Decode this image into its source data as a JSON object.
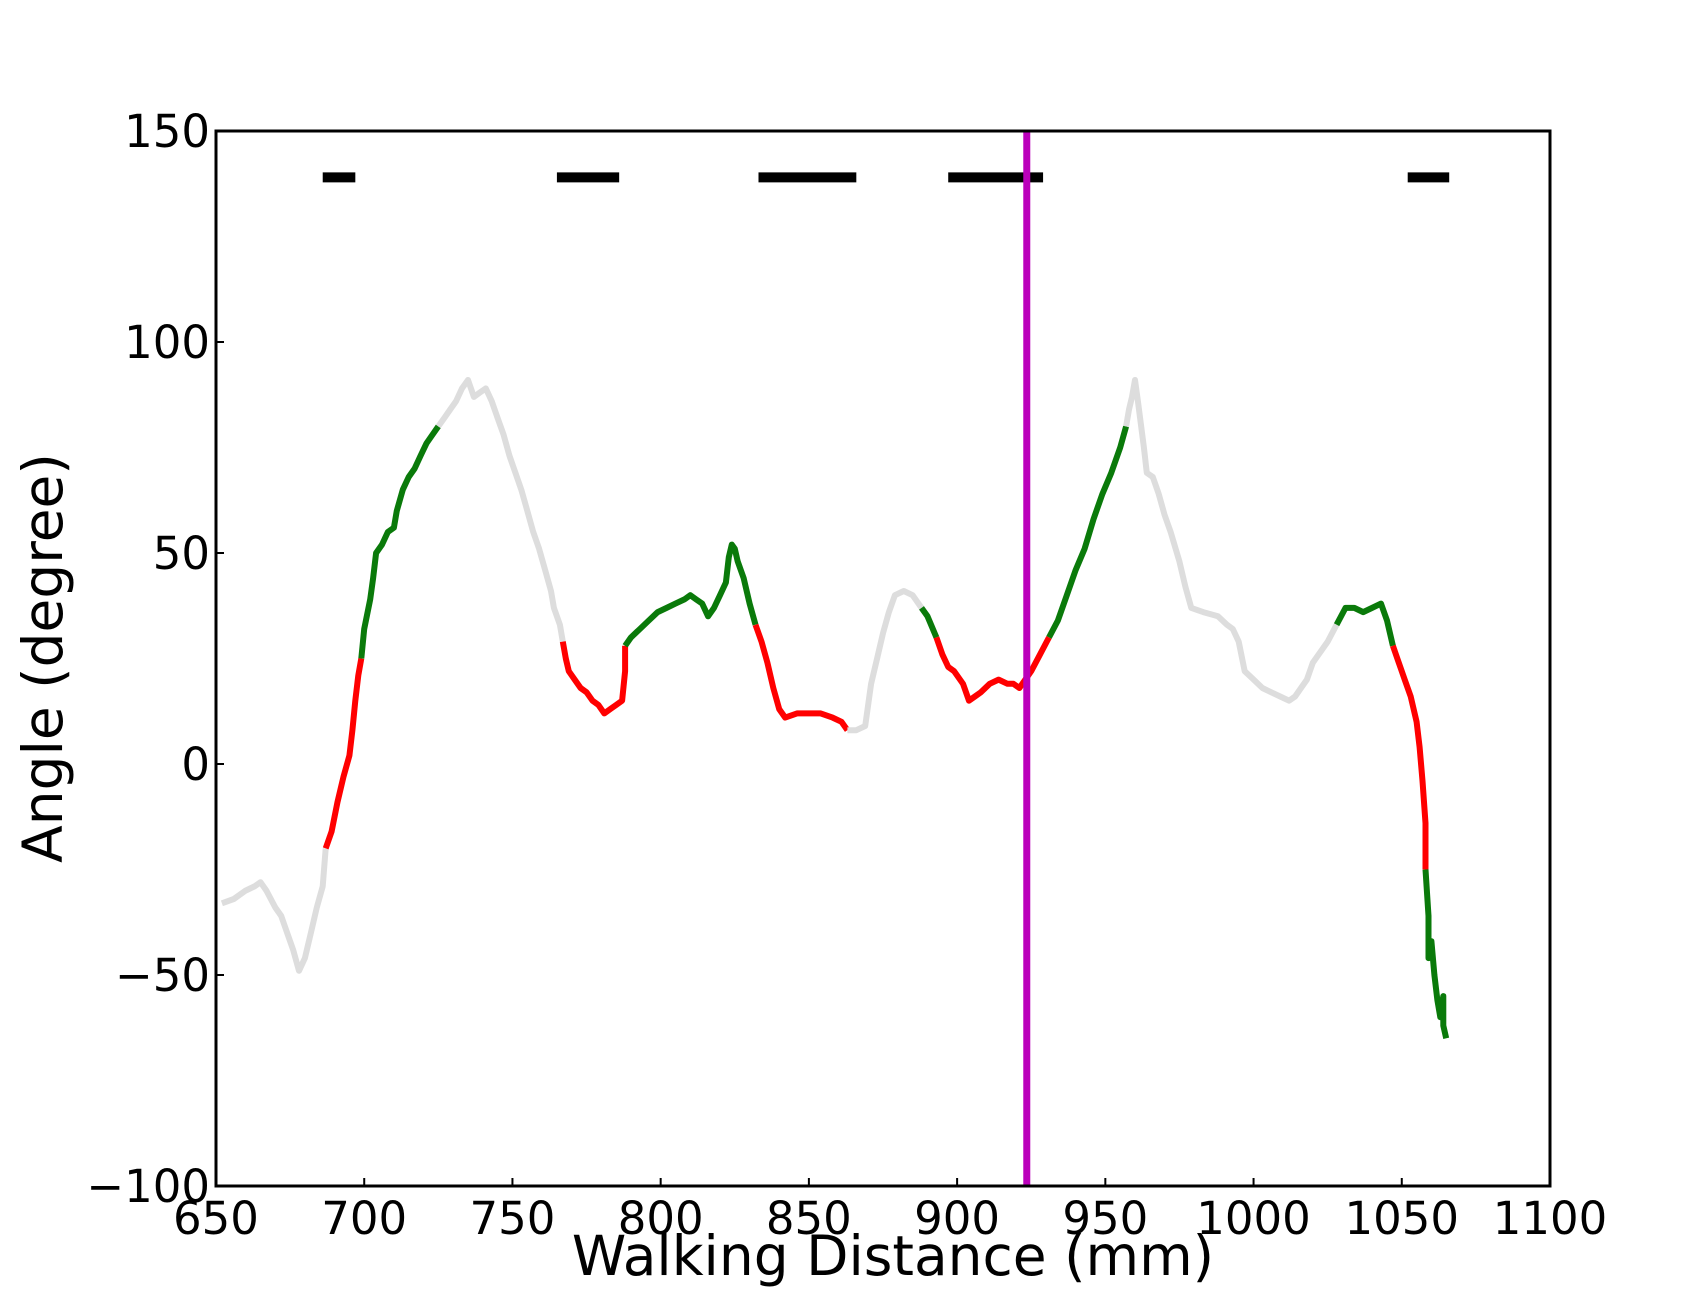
{
  "chart_data": {
    "type": "line",
    "title": "",
    "xlabel": "Walking Distance (mm)",
    "ylabel": "Angle (degree)",
    "xlim": [
      650,
      1100
    ],
    "ylim": [
      -100,
      150
    ],
    "xticks": [
      650,
      700,
      750,
      800,
      850,
      900,
      950,
      1000,
      1050,
      1100
    ],
    "yticks": [
      -100,
      -50,
      0,
      50,
      100,
      150
    ],
    "grid": false,
    "legend": "none",
    "colors": {
      "inactive": "#dddddd",
      "rising": "#0a7a0a",
      "falling": "#ff0000",
      "marker": "#bb00bb",
      "bars": "#000000"
    },
    "vertical_marker": {
      "x": 923.5
    },
    "top_bars": {
      "y": 139,
      "ranges": [
        [
          686,
          697
        ],
        [
          765,
          786
        ],
        [
          833,
          866
        ],
        [
          897,
          929
        ],
        [
          1052,
          1066
        ]
      ]
    },
    "segments": [
      {
        "type": "inactive",
        "points": [
          [
            652,
            -33
          ],
          [
            656,
            -32
          ],
          [
            660,
            -30
          ],
          [
            663,
            -29
          ],
          [
            665,
            -28
          ],
          [
            667,
            -30
          ],
          [
            670,
            -34
          ],
          [
            672,
            -36
          ],
          [
            674,
            -40
          ],
          [
            676,
            -44
          ],
          [
            678,
            -49
          ],
          [
            680,
            -46
          ],
          [
            682,
            -40
          ],
          [
            684,
            -34
          ],
          [
            686,
            -29
          ],
          [
            687,
            -20
          ]
        ]
      },
      {
        "type": "falling",
        "points": [
          [
            687,
            -20
          ],
          [
            689,
            -16
          ],
          [
            691,
            -9
          ],
          [
            693,
            -3
          ],
          [
            695,
            2
          ],
          [
            696,
            8
          ],
          [
            697,
            15
          ],
          [
            698,
            21
          ],
          [
            699,
            25
          ]
        ]
      },
      {
        "type": "rising",
        "points": [
          [
            699,
            25
          ],
          [
            700,
            32
          ],
          [
            702,
            39
          ],
          [
            703,
            44
          ],
          [
            704,
            50
          ],
          [
            706,
            52
          ],
          [
            708,
            55
          ],
          [
            710,
            56
          ],
          [
            711,
            60
          ],
          [
            713,
            65
          ],
          [
            715,
            68
          ],
          [
            717,
            70
          ],
          [
            719,
            73
          ],
          [
            721,
            76
          ],
          [
            723,
            78
          ],
          [
            725,
            80
          ]
        ]
      },
      {
        "type": "inactive",
        "points": [
          [
            725,
            80
          ],
          [
            727,
            82
          ],
          [
            729,
            84
          ],
          [
            731,
            86
          ],
          [
            733,
            89
          ],
          [
            735,
            91
          ],
          [
            737,
            87
          ],
          [
            739,
            88
          ],
          [
            741,
            89
          ],
          [
            743,
            86
          ],
          [
            745,
            82
          ],
          [
            747,
            78
          ],
          [
            749,
            73
          ],
          [
            751,
            69
          ],
          [
            753,
            65
          ],
          [
            755,
            60
          ],
          [
            757,
            55
          ],
          [
            759,
            51
          ],
          [
            761,
            46
          ],
          [
            763,
            41
          ],
          [
            764,
            37
          ],
          [
            766,
            33
          ],
          [
            767,
            29
          ]
        ]
      },
      {
        "type": "falling",
        "points": [
          [
            767,
            29
          ],
          [
            768,
            25
          ],
          [
            769,
            22
          ],
          [
            771,
            20
          ],
          [
            773,
            18
          ],
          [
            775,
            17
          ],
          [
            777,
            15
          ],
          [
            779,
            14
          ],
          [
            781,
            12
          ],
          [
            783,
            13
          ],
          [
            785,
            14
          ],
          [
            787,
            15
          ],
          [
            788,
            22
          ],
          [
            788,
            28
          ]
        ]
      },
      {
        "type": "rising",
        "points": [
          [
            788,
            28
          ],
          [
            790,
            30
          ],
          [
            793,
            32
          ],
          [
            796,
            34
          ],
          [
            799,
            36
          ],
          [
            802,
            37
          ],
          [
            805,
            38
          ],
          [
            808,
            39
          ],
          [
            810,
            40
          ],
          [
            812,
            39
          ],
          [
            814,
            38
          ],
          [
            816,
            35
          ],
          [
            818,
            37
          ],
          [
            820,
            40
          ],
          [
            822,
            43
          ],
          [
            823,
            49
          ],
          [
            824,
            52
          ],
          [
            825,
            51
          ],
          [
            826,
            48
          ],
          [
            828,
            44
          ],
          [
            830,
            38
          ],
          [
            832,
            33
          ]
        ]
      },
      {
        "type": "falling",
        "points": [
          [
            832,
            33
          ],
          [
            834,
            29
          ],
          [
            836,
            24
          ],
          [
            838,
            18
          ],
          [
            840,
            13
          ],
          [
            842,
            11
          ],
          [
            846,
            12
          ],
          [
            850,
            12
          ],
          [
            854,
            12
          ],
          [
            858,
            11
          ],
          [
            861,
            10
          ],
          [
            863,
            8
          ]
        ]
      },
      {
        "type": "inactive",
        "points": [
          [
            863,
            8
          ],
          [
            866,
            8
          ],
          [
            869,
            9
          ],
          [
            871,
            19
          ],
          [
            873,
            25
          ],
          [
            875,
            31
          ],
          [
            877,
            36
          ],
          [
            879,
            40
          ],
          [
            882,
            41
          ],
          [
            885,
            40
          ],
          [
            888,
            37
          ]
        ]
      },
      {
        "type": "rising",
        "points": [
          [
            888,
            37
          ],
          [
            890,
            35
          ],
          [
            893,
            30
          ]
        ]
      },
      {
        "type": "falling",
        "points": [
          [
            893,
            30
          ],
          [
            895,
            26
          ],
          [
            897,
            23
          ],
          [
            899,
            22
          ],
          [
            902,
            19
          ],
          [
            904,
            15
          ],
          [
            906,
            16
          ],
          [
            908,
            17
          ],
          [
            911,
            19
          ],
          [
            914,
            20
          ],
          [
            917,
            19
          ],
          [
            919,
            19
          ],
          [
            921,
            18
          ],
          [
            923,
            20
          ],
          [
            925,
            22
          ],
          [
            928,
            26
          ],
          [
            931,
            30
          ]
        ]
      },
      {
        "type": "rising",
        "points": [
          [
            931,
            30
          ],
          [
            934,
            34
          ],
          [
            937,
            40
          ],
          [
            940,
            46
          ],
          [
            943,
            51
          ],
          [
            946,
            58
          ],
          [
            949,
            64
          ],
          [
            952,
            69
          ],
          [
            955,
            75
          ],
          [
            957,
            80
          ]
        ]
      },
      {
        "type": "inactive",
        "points": [
          [
            957,
            80
          ],
          [
            958,
            84
          ],
          [
            959,
            87
          ],
          [
            960,
            91
          ],
          [
            961,
            86
          ],
          [
            963,
            75
          ],
          [
            964,
            69
          ],
          [
            966,
            68
          ],
          [
            968,
            64
          ],
          [
            970,
            59
          ],
          [
            972,
            55
          ],
          [
            975,
            48
          ],
          [
            977,
            42
          ],
          [
            979,
            37
          ],
          [
            983,
            36
          ],
          [
            988,
            35
          ],
          [
            991,
            33
          ],
          [
            993,
            32
          ],
          [
            995,
            29
          ],
          [
            997,
            22
          ],
          [
            1000,
            20
          ],
          [
            1003,
            18
          ],
          [
            1006,
            17
          ],
          [
            1009,
            16
          ],
          [
            1012,
            15
          ],
          [
            1014,
            16
          ],
          [
            1016,
            18
          ],
          [
            1018,
            20
          ],
          [
            1020,
            24
          ],
          [
            1022,
            26
          ],
          [
            1025,
            29
          ],
          [
            1028,
            33
          ]
        ]
      },
      {
        "type": "rising",
        "points": [
          [
            1028,
            33
          ],
          [
            1031,
            37
          ],
          [
            1034,
            37
          ],
          [
            1037,
            36
          ],
          [
            1040,
            37
          ],
          [
            1043,
            38
          ],
          [
            1045,
            34
          ],
          [
            1047,
            28
          ]
        ]
      },
      {
        "type": "falling",
        "points": [
          [
            1047,
            28
          ],
          [
            1049,
            24
          ],
          [
            1051,
            20
          ],
          [
            1053,
            16
          ],
          [
            1055,
            10
          ],
          [
            1056,
            4
          ],
          [
            1057,
            -4
          ],
          [
            1058,
            -14
          ],
          [
            1058,
            -25
          ]
        ]
      },
      {
        "type": "rising",
        "points": [
          [
            1058,
            -25
          ],
          [
            1059,
            -36
          ],
          [
            1059,
            -46
          ],
          [
            1060,
            -42
          ],
          [
            1061,
            -50
          ],
          [
            1062,
            -56
          ],
          [
            1063,
            -60
          ],
          [
            1064,
            -55
          ],
          [
            1064,
            -62
          ],
          [
            1065,
            -65
          ]
        ]
      }
    ]
  }
}
